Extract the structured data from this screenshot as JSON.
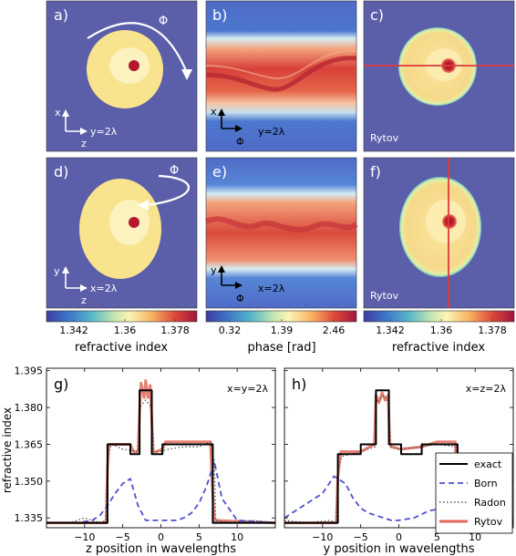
{
  "panels": {
    "a": {
      "label": "a)",
      "axis_v": "x",
      "axis_h": "z",
      "caption": "y=2λ",
      "rotation_symbol": "Φ"
    },
    "b": {
      "label": "b)",
      "axis_v": "x",
      "axis_h": "Φ",
      "caption": "y=2λ"
    },
    "c": {
      "label": "c)",
      "caption": "Rytov"
    },
    "d": {
      "label": "d)",
      "axis_v": "y",
      "axis_h": "z",
      "caption": "x=2λ",
      "rotation_symbol": "Φ"
    },
    "e": {
      "label": "e)",
      "axis_v": "y",
      "axis_h": "Φ",
      "caption": "x=2λ"
    },
    "f": {
      "label": "f)",
      "caption": "Rytov"
    }
  },
  "colorbars": {
    "left": {
      "ticks": [
        "1.342",
        "1.36",
        "1.378"
      ],
      "label": "refractive index"
    },
    "middle": {
      "ticks": [
        "0.32",
        "1.39",
        "2.46"
      ],
      "label": "phase [rad]"
    },
    "right": {
      "ticks": [
        "1.342",
        "1.36",
        "1.378"
      ],
      "label": "refractive index"
    }
  },
  "colors": {
    "background": "#5b5fa9",
    "outer_shell": "#f8e48e",
    "inner_layer": "#fbf2bf",
    "nucleolus": "#b5172f",
    "profile_line": "#e0393e",
    "exact": "#000000",
    "born": "#4d4fd0",
    "radon": "#555555",
    "rytov": "#e26a5c"
  },
  "chart_data": [
    {
      "type": "line",
      "label": "g)",
      "annotation": "x=y=2λ",
      "xlabel": "z position in wavelengths",
      "ylabel": "refractive index",
      "xlim": [
        -15,
        15
      ],
      "ylim": [
        1.331,
        1.396
      ],
      "xticks": [
        "−10",
        "−5",
        "0",
        "5",
        "10"
      ],
      "yticks": [
        "1.335",
        "1.350",
        "1.365",
        "1.380",
        "1.395"
      ],
      "series": [
        {
          "name": "exact",
          "x": [
            -15,
            -7,
            -7,
            -4,
            -4,
            -2.8,
            -2.8,
            -1.2,
            -1.2,
            0.2,
            0.2,
            3,
            3,
            6.8,
            6.8,
            15
          ],
          "y": [
            1.333,
            1.333,
            1.365,
            1.365,
            1.361,
            1.361,
            1.387,
            1.387,
            1.361,
            1.361,
            1.365,
            1.365,
            1.365,
            1.365,
            1.333,
            1.333
          ]
        },
        {
          "name": "Born",
          "x": [
            -15,
            -11,
            -9,
            -8,
            -7.5,
            -7,
            -6,
            -5,
            -4,
            -3,
            -2,
            0,
            2,
            3,
            4,
            5,
            6,
            6.5,
            7,
            8,
            10,
            15
          ],
          "y": [
            1.333,
            1.333,
            1.334,
            1.336,
            1.338,
            1.34,
            1.345,
            1.349,
            1.351,
            1.34,
            1.334,
            1.334,
            1.334,
            1.335,
            1.337,
            1.341,
            1.348,
            1.353,
            1.358,
            1.343,
            1.334,
            1.333
          ]
        },
        {
          "name": "Radon",
          "x": [
            -15,
            -12,
            -10,
            -8,
            -7.2,
            -7,
            -6.5,
            -5,
            -3,
            -2.8,
            -2,
            -1.2,
            -1,
            0,
            1,
            3,
            5,
            6.5,
            7,
            7.2,
            9,
            12,
            15
          ],
          "y": [
            1.333,
            1.333,
            1.335,
            1.333,
            1.334,
            1.36,
            1.365,
            1.363,
            1.362,
            1.38,
            1.383,
            1.38,
            1.362,
            1.362,
            1.363,
            1.364,
            1.364,
            1.366,
            1.358,
            1.334,
            1.333,
            1.334,
            1.333
          ]
        },
        {
          "name": "Rytov",
          "x": [
            -15,
            -7.2,
            -7,
            -6.8,
            -4,
            -3.6,
            -3,
            -2.8,
            -2.6,
            -2.2,
            -2,
            -1.7,
            -1.4,
            -1.2,
            -1,
            -0.6,
            0.2,
            0.6,
            3,
            6.5,
            6.7,
            7,
            15
          ],
          "y": [
            1.333,
            1.333,
            1.355,
            1.365,
            1.365,
            1.362,
            1.362,
            1.378,
            1.39,
            1.384,
            1.391,
            1.384,
            1.389,
            1.375,
            1.362,
            1.362,
            1.363,
            1.366,
            1.366,
            1.366,
            1.35,
            1.334,
            1.333
          ]
        }
      ]
    },
    {
      "type": "line",
      "label": "h)",
      "annotation": "x=z=2λ",
      "xlabel": "y position in wavelengths",
      "ylabel": "",
      "xlim": [
        -15,
        15
      ],
      "ylim": [
        1.331,
        1.396
      ],
      "xticks": [
        "−10",
        "−5",
        "0",
        "5",
        "10"
      ],
      "yticks": [],
      "series": [
        {
          "name": "exact",
          "x": [
            -15,
            -8,
            -8,
            -5,
            -5,
            -3,
            -3,
            -1.3,
            -1.3,
            0.3,
            0.3,
            3,
            3,
            7.7,
            7.7,
            15
          ],
          "y": [
            1.333,
            1.333,
            1.361,
            1.361,
            1.365,
            1.365,
            1.387,
            1.387,
            1.365,
            1.365,
            1.361,
            1.361,
            1.365,
            1.365,
            1.333,
            1.333
          ]
        },
        {
          "name": "Born",
          "x": [
            -15,
            -10,
            -8.5,
            -7,
            -6,
            -5,
            -4,
            -3,
            -2,
            -1,
            0,
            2,
            4,
            6,
            7,
            7.7,
            8,
            10,
            15
          ],
          "y": [
            1.335,
            1.345,
            1.352,
            1.349,
            1.343,
            1.339,
            1.337,
            1.336,
            1.335,
            1.334,
            1.334,
            1.335,
            1.338,
            1.339,
            1.336,
            1.334,
            1.333,
            1.333,
            1.333
          ]
        },
        {
          "name": "Radon",
          "x": [
            -15,
            -12,
            -9,
            -8.2,
            -8,
            -7.5,
            -5,
            -3.1,
            -3,
            -2,
            -1.3,
            -1.1,
            0,
            3,
            5,
            7.5,
            7.7,
            9,
            12,
            15
          ],
          "y": [
            1.334,
            1.333,
            1.334,
            1.333,
            1.355,
            1.36,
            1.362,
            1.364,
            1.382,
            1.385,
            1.382,
            1.364,
            1.363,
            1.364,
            1.365,
            1.364,
            1.337,
            1.334,
            1.333,
            1.334
          ]
        },
        {
          "name": "Rytov",
          "x": [
            -15,
            -8.2,
            -8,
            -7.6,
            -5,
            -3.2,
            -3,
            -2.6,
            -2.2,
            -1.8,
            -1.4,
            -1.2,
            -1,
            0.3,
            3,
            5,
            7.4,
            7.6,
            7.9,
            15
          ],
          "y": [
            1.333,
            1.333,
            1.352,
            1.362,
            1.362,
            1.365,
            1.385,
            1.382,
            1.386,
            1.383,
            1.385,
            1.366,
            1.364,
            1.363,
            1.364,
            1.366,
            1.366,
            1.35,
            1.334,
            1.333
          ]
        }
      ]
    }
  ],
  "legend": [
    "exact",
    "Born",
    "Radon",
    "Rytov"
  ]
}
